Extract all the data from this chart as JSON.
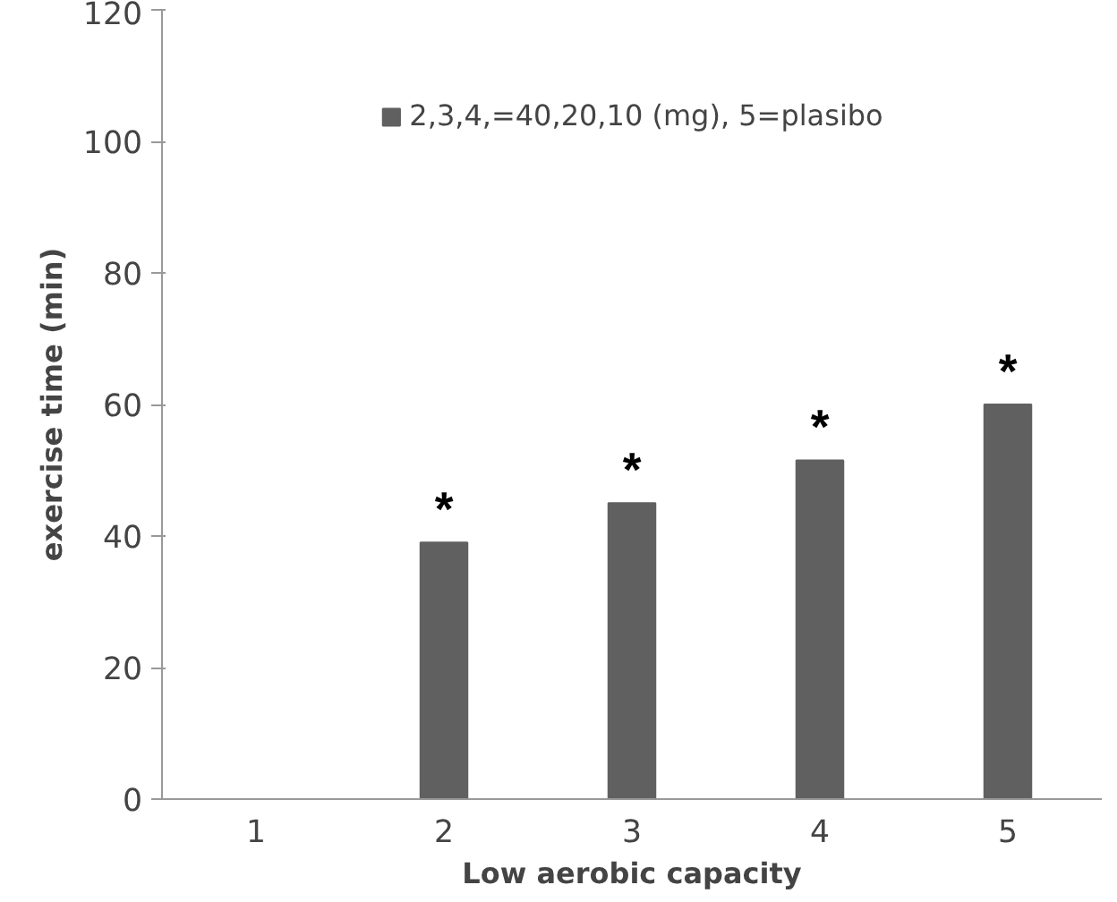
{
  "chart_data": {
    "type": "bar",
    "xlabel": "Low aerobic capacity",
    "ylabel": "exercise time (min)",
    "categories": [
      "1",
      "2",
      "3",
      "4",
      "5"
    ],
    "series": [
      {
        "name": "2,3,4,=40,20,10 (mg), 5=plasibo",
        "color": "#606060",
        "values": [
          null,
          39,
          45,
          51.5,
          60
        ]
      }
    ],
    "ylim": [
      0,
      120
    ],
    "yticks": [
      0,
      20,
      40,
      60,
      80,
      100,
      120
    ],
    "grid": false,
    "legend": "top",
    "annotations": [
      {
        "text": "*",
        "x": "2",
        "y": 39
      },
      {
        "text": "*",
        "x": "3",
        "y": 45
      },
      {
        "text": "*",
        "x": "4",
        "y": 51.5
      },
      {
        "text": "*",
        "x": "5",
        "y": 60
      }
    ]
  }
}
